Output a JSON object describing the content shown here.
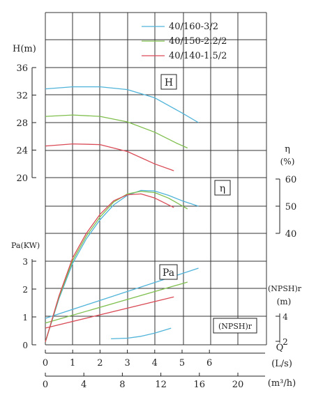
{
  "chart_data": {
    "type": "line",
    "legend": {
      "placement": "top-right",
      "entries": [
        {
          "name": "40/160-3/2",
          "color": "#4fb3d9"
        },
        {
          "name": "40/150-2.2/2",
          "color": "#7fbf4d"
        },
        {
          "name": "40/140-1.5/2",
          "color": "#d94a55"
        }
      ]
    },
    "axes": {
      "head": {
        "label": "H(m)",
        "ticks": [
          "36",
          "32",
          "28",
          "24",
          "20"
        ],
        "range": [
          20,
          36
        ]
      },
      "efficiency": {
        "label_symbol": "η",
        "label_unit": "(%)",
        "ticks": [
          "60",
          "50",
          "40"
        ],
        "range": [
          40,
          60
        ]
      },
      "power": {
        "label": "Pa(KW)",
        "ticks": [
          "3",
          "2",
          "1",
          "0"
        ],
        "range": [
          0,
          3
        ]
      },
      "npsh": {
        "label": "(NPSH)r",
        "label_unit": "(m)",
        "ticks": [
          "4",
          "2"
        ],
        "range": [
          2,
          4
        ]
      },
      "flow_ls": {
        "label_symbol": "Q",
        "label": "(L/s)",
        "ticks": [
          "0",
          "1",
          "2",
          "3",
          "4",
          "5",
          "6"
        ],
        "range": [
          0,
          6
        ]
      },
      "flow_m3h": {
        "label": "(m³/h)",
        "ticks": [
          "0",
          "4",
          "8",
          "12",
          "16",
          "20"
        ],
        "range": [
          0,
          21.6
        ]
      }
    },
    "curve_labels": {
      "head": "H",
      "efficiency": "η",
      "power": "Pa",
      "npsh": "(NPSH)r"
    },
    "series": [
      {
        "name": "40/160-3/2",
        "color": "#4fb3d9",
        "head": {
          "x": [
            0,
            1,
            2,
            3,
            4,
            5,
            5.6
          ],
          "y": [
            32.9,
            33.2,
            33.2,
            32.8,
            31.6,
            29.4,
            28.0
          ]
        },
        "efficiency": {
          "x": [
            0,
            0.5,
            1,
            1.5,
            2,
            2.5,
            3,
            3.5,
            4,
            4.5,
            5,
            5.6
          ],
          "y": [
            0,
            16,
            29,
            38,
            45,
            50.5,
            54,
            55.8,
            55.6,
            54,
            52,
            50
          ]
        },
        "power": {
          "x": [
            0,
            5.6
          ],
          "y": [
            0.95,
            2.75
          ]
        },
        "npsh": {
          "x": [
            2.4,
            3,
            3.5,
            4,
            4.6
          ],
          "y": [
            2.2,
            2.25,
            2.4,
            2.65,
            3.05
          ]
        }
      },
      {
        "name": "40/150-2.2/2",
        "color": "#7fbf4d",
        "head": {
          "x": [
            0,
            1,
            2,
            3,
            4,
            4.8,
            5.2
          ],
          "y": [
            28.9,
            29.1,
            28.9,
            28.1,
            26.6,
            25.0,
            24.3
          ]
        },
        "efficiency": {
          "x": [
            0,
            0.5,
            1,
            1.5,
            2,
            2.5,
            3,
            3.5,
            4,
            4.5,
            5.2
          ],
          "y": [
            0,
            16.5,
            30,
            39,
            46,
            51.5,
            54.5,
            55.5,
            55,
            53,
            49
          ]
        },
        "power": {
          "x": [
            0,
            5.2
          ],
          "y": [
            0.78,
            2.25
          ]
        }
      },
      {
        "name": "40/140-1.5/2",
        "color": "#d94a55",
        "head": {
          "x": [
            0,
            1,
            2,
            3,
            4,
            4.7
          ],
          "y": [
            24.6,
            24.9,
            24.8,
            23.8,
            22.0,
            21.0
          ]
        },
        "efficiency": {
          "x": [
            0,
            0.5,
            1,
            1.5,
            2,
            2.5,
            3,
            3.5,
            4,
            4.7
          ],
          "y": [
            0,
            17,
            31,
            40,
            47,
            52,
            54.2,
            54.5,
            53,
            49.5
          ]
        },
        "power": {
          "x": [
            0,
            4.7
          ],
          "y": [
            0.6,
            1.72
          ]
        }
      }
    ]
  }
}
